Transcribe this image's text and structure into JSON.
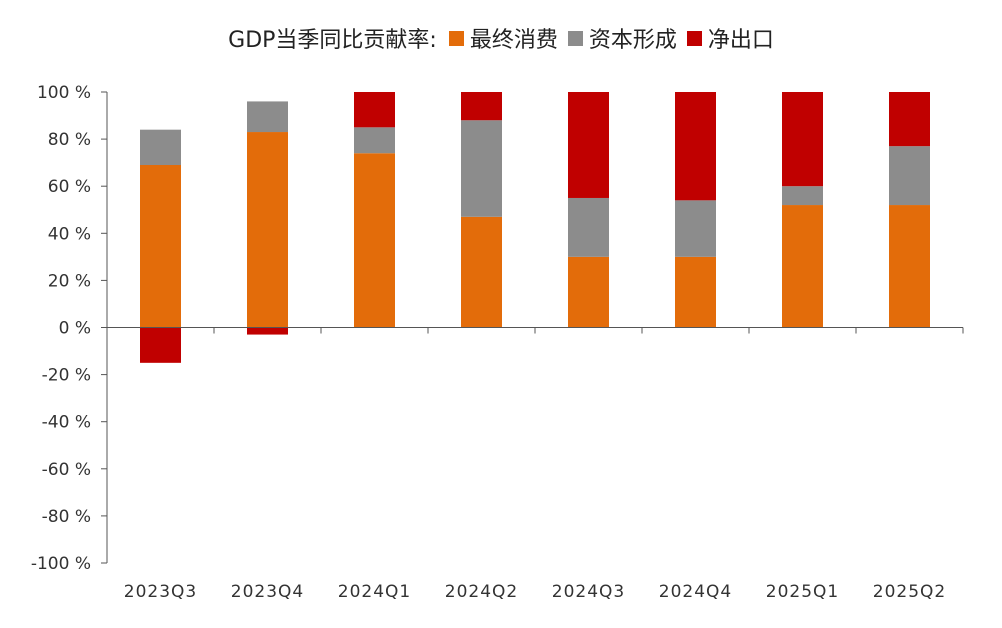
{
  "chart_data": {
    "type": "bar",
    "stacked": true,
    "legend_prefix": "GDP当季同比贡献率:",
    "categories": [
      "2023Q3",
      "2023Q4",
      "2024Q1",
      "2024Q2",
      "2024Q3",
      "2024Q4",
      "2025Q1",
      "2025Q2"
    ],
    "series": [
      {
        "name": "最终消费",
        "color": "#E36C0A",
        "values": [
          69,
          83,
          74,
          47,
          30,
          30,
          52,
          52
        ]
      },
      {
        "name": "资本形成",
        "color": "#8C8C8C",
        "values": [
          15,
          13,
          11,
          41,
          25,
          24,
          8,
          25
        ]
      },
      {
        "name": "净出口",
        "color": "#C00000",
        "values": [
          -15,
          -3,
          15,
          12,
          45,
          46,
          40,
          23
        ]
      }
    ],
    "ylim": [
      -100,
      100
    ],
    "yticks": [
      "100 %",
      "80 %",
      "60 %",
      "40 %",
      "20 %",
      "0 %",
      "-20 %",
      "-40 %",
      "-60 %",
      "-80 %",
      "-100 %"
    ],
    "ytick_values": [
      100,
      80,
      60,
      40,
      20,
      0,
      -20,
      -40,
      -60,
      -80,
      -100
    ],
    "grid": false,
    "legend_position": "top-center"
  }
}
